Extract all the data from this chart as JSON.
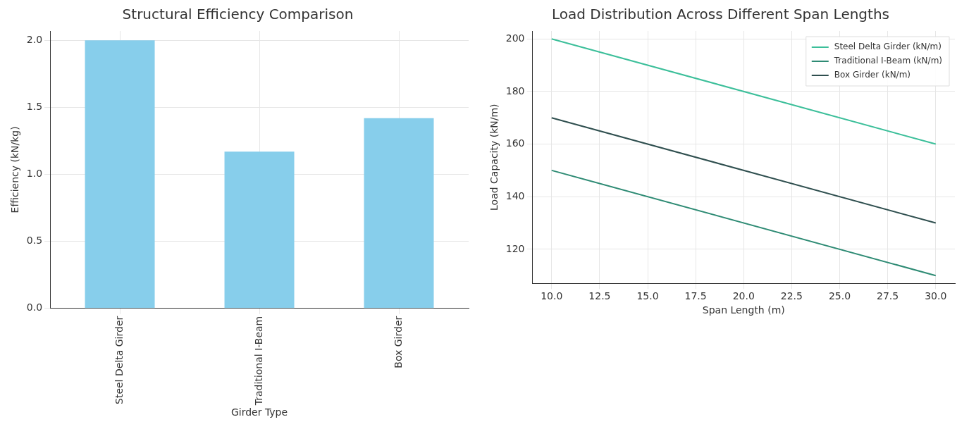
{
  "chart_data": [
    {
      "type": "bar",
      "title": "Structural Efficiency Comparison",
      "xlabel": "Girder Type",
      "ylabel": "Efficiency (kN/kg)",
      "categories": [
        "Steel Delta Girder",
        "Traditional I-Beam",
        "Box Girder"
      ],
      "values": [
        2.0,
        1.17,
        1.42
      ],
      "color": "#87ceeb",
      "ylim": [
        0,
        2.07
      ],
      "yticks": [
        {
          "value": 0,
          "label": "0.0"
        },
        {
          "value": 0.5,
          "label": "0.5"
        },
        {
          "value": 1,
          "label": "1.0"
        },
        {
          "value": 1.5,
          "label": "1.5"
        },
        {
          "value": 2,
          "label": "2.0"
        }
      ],
      "grid": true,
      "legend": false
    },
    {
      "type": "line",
      "title": "Load Distribution Across Different Span Lengths",
      "xlabel": "Span Length (m)",
      "ylabel": "Load Capacity (kN/m)",
      "x": [
        10,
        30
      ],
      "series": [
        {
          "name": "Steel Delta Girder (kN/m)",
          "color": "#3cbf9a",
          "values": [
            200,
            160
          ]
        },
        {
          "name": "Traditional I-Beam (kN/m)",
          "color": "#2e8b74",
          "values": [
            150,
            110
          ]
        },
        {
          "name": "Box Girder (kN/m)",
          "color": "#2f4f4f",
          "values": [
            170,
            130
          ]
        }
      ],
      "xlim": [
        9,
        31
      ],
      "xticks": [
        {
          "value": 10,
          "label": "10.0"
        },
        {
          "value": 12.5,
          "label": "12.5"
        },
        {
          "value": 15,
          "label": "15.0"
        },
        {
          "value": 17.5,
          "label": "17.5"
        },
        {
          "value": 20,
          "label": "20.0"
        },
        {
          "value": 22.5,
          "label": "22.5"
        },
        {
          "value": 25,
          "label": "25.0"
        },
        {
          "value": 27.5,
          "label": "27.5"
        },
        {
          "value": 30,
          "label": "30.0"
        }
      ],
      "ylim": [
        107,
        203
      ],
      "yticks": [
        120,
        140,
        160,
        180,
        200
      ],
      "grid": true,
      "legend": "top right",
      "marker": "none",
      "line_style": "solid"
    }
  ]
}
